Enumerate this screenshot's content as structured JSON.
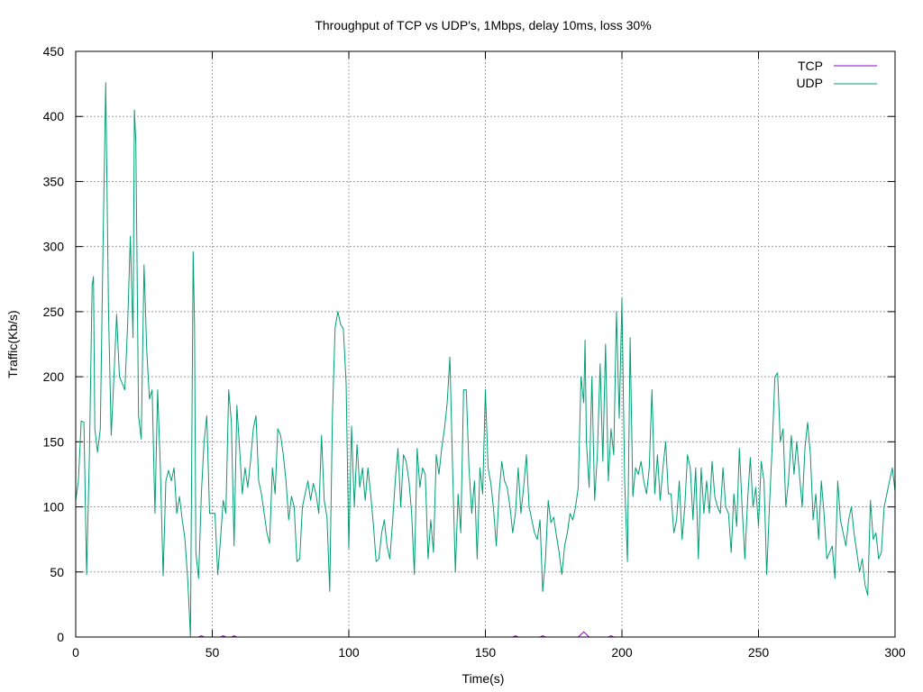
{
  "chart_data": {
    "type": "line",
    "title": "Throughput of TCP vs UDP's, 1Mbps, delay 10ms, loss 30%",
    "xlabel": "Time(s)",
    "ylabel": "Traffic(Kb/s)",
    "xlim": [
      0,
      300
    ],
    "ylim": [
      0,
      450
    ],
    "xticks": [
      0,
      50,
      100,
      150,
      200,
      250,
      300
    ],
    "yticks": [
      0,
      50,
      100,
      150,
      200,
      250,
      300,
      350,
      400,
      450
    ],
    "grid": true,
    "legend_position": "top-right",
    "series": [
      {
        "name": "TCP",
        "color": "#9400d3",
        "points": [
          [
            0,
            0
          ],
          [
            45,
            0
          ],
          [
            46,
            1
          ],
          [
            47,
            0
          ],
          [
            53,
            0
          ],
          [
            54,
            1
          ],
          [
            55,
            0
          ],
          [
            57,
            0
          ],
          [
            58,
            1
          ],
          [
            59,
            0
          ],
          [
            160,
            0
          ],
          [
            161,
            1
          ],
          [
            162,
            0
          ],
          [
            170,
            0
          ],
          [
            171,
            1
          ],
          [
            172,
            0
          ],
          [
            184,
            0
          ],
          [
            185,
            2
          ],
          [
            186,
            4
          ],
          [
            187,
            2
          ],
          [
            188,
            0
          ],
          [
            195,
            0
          ],
          [
            196,
            1
          ],
          [
            197,
            0
          ],
          [
            300,
            0
          ]
        ]
      },
      {
        "name": "UDP",
        "color": "#009e73",
        "points": [
          [
            0,
            105
          ],
          [
            1,
            120
          ],
          [
            2,
            166
          ],
          [
            3,
            165
          ],
          [
            4,
            48
          ],
          [
            5,
            140
          ],
          [
            6,
            270
          ],
          [
            6.5,
            277
          ],
          [
            7,
            160
          ],
          [
            8,
            142
          ],
          [
            9,
            160
          ],
          [
            10,
            300
          ],
          [
            11,
            426
          ],
          [
            12,
            250
          ],
          [
            13,
            155
          ],
          [
            14,
            200
          ],
          [
            15,
            248
          ],
          [
            16,
            200
          ],
          [
            17,
            195
          ],
          [
            18,
            190
          ],
          [
            19,
            240
          ],
          [
            20,
            308
          ],
          [
            21,
            230
          ],
          [
            21.5,
            405
          ],
          [
            22,
            380
          ],
          [
            23,
            170
          ],
          [
            24,
            152
          ],
          [
            25,
            286
          ],
          [
            26,
            220
          ],
          [
            27,
            183
          ],
          [
            28,
            190
          ],
          [
            29,
            95
          ],
          [
            30,
            190
          ],
          [
            31,
            130
          ],
          [
            32,
            47
          ],
          [
            33,
            120
          ],
          [
            34,
            128
          ],
          [
            35,
            120
          ],
          [
            36,
            130
          ],
          [
            37,
            95
          ],
          [
            38,
            108
          ],
          [
            39,
            90
          ],
          [
            40,
            75
          ],
          [
            41,
            45
          ],
          [
            42,
            0
          ],
          [
            43,
            296
          ],
          [
            43.5,
            240
          ],
          [
            44,
            65
          ],
          [
            45,
            45
          ],
          [
            46,
            110
          ],
          [
            47,
            150
          ],
          [
            48,
            170
          ],
          [
            49,
            95
          ],
          [
            50,
            95
          ],
          [
            51,
            95
          ],
          [
            52,
            48
          ],
          [
            53,
            75
          ],
          [
            54,
            105
          ],
          [
            55,
            95
          ],
          [
            56,
            190
          ],
          [
            57,
            165
          ],
          [
            58,
            70
          ],
          [
            59,
            178
          ],
          [
            60,
            145
          ],
          [
            61,
            110
          ],
          [
            62,
            130
          ],
          [
            63,
            115
          ],
          [
            64,
            135
          ],
          [
            65,
            160
          ],
          [
            66,
            170
          ],
          [
            67,
            120
          ],
          [
            68,
            110
          ],
          [
            69,
            95
          ],
          [
            70,
            80
          ],
          [
            71,
            72
          ],
          [
            72,
            130
          ],
          [
            73,
            110
          ],
          [
            74,
            160
          ],
          [
            75,
            155
          ],
          [
            76,
            140
          ],
          [
            77,
            120
          ],
          [
            78,
            90
          ],
          [
            79,
            108
          ],
          [
            80,
            100
          ],
          [
            81,
            58
          ],
          [
            82,
            60
          ],
          [
            83,
            100
          ],
          [
            84,
            110
          ],
          [
            85,
            120
          ],
          [
            86,
            105
          ],
          [
            87,
            118
          ],
          [
            88,
            110
          ],
          [
            89,
            95
          ],
          [
            90,
            155
          ],
          [
            91,
            105
          ],
          [
            92,
            92
          ],
          [
            93,
            35
          ],
          [
            94,
            170
          ],
          [
            95,
            238
          ],
          [
            96,
            250
          ],
          [
            97,
            240
          ],
          [
            98,
            237
          ],
          [
            99,
            195
          ],
          [
            100,
            68
          ],
          [
            101,
            162
          ],
          [
            102,
            100
          ],
          [
            103,
            148
          ],
          [
            104,
            115
          ],
          [
            105,
            130
          ],
          [
            106,
            105
          ],
          [
            107,
            130
          ],
          [
            108,
            110
          ],
          [
            109,
            86
          ],
          [
            110,
            58
          ],
          [
            111,
            60
          ],
          [
            112,
            80
          ],
          [
            113,
            90
          ],
          [
            114,
            70
          ],
          [
            115,
            60
          ],
          [
            116,
            88
          ],
          [
            117,
            120
          ],
          [
            118,
            145
          ],
          [
            119,
            100
          ],
          [
            120,
            140
          ],
          [
            121,
            135
          ],
          [
            122,
            120
          ],
          [
            123,
            95
          ],
          [
            124,
            48
          ],
          [
            125,
            145
          ],
          [
            126,
            115
          ],
          [
            127,
            130
          ],
          [
            128,
            125
          ],
          [
            129,
            60
          ],
          [
            130,
            90
          ],
          [
            131,
            65
          ],
          [
            132,
            140
          ],
          [
            133,
            125
          ],
          [
            134,
            145
          ],
          [
            135,
            160
          ],
          [
            136,
            180
          ],
          [
            137,
            215
          ],
          [
            138,
            130
          ],
          [
            139,
            50
          ],
          [
            140,
            110
          ],
          [
            141,
            80
          ],
          [
            142,
            190
          ],
          [
            143,
            190
          ],
          [
            144,
            130
          ],
          [
            145,
            95
          ],
          [
            146,
            120
          ],
          [
            147,
            60
          ],
          [
            148,
            130
          ],
          [
            149,
            110
          ],
          [
            150,
            190
          ],
          [
            151,
            130
          ],
          [
            152,
            118
          ],
          [
            153,
            98
          ],
          [
            154,
            70
          ],
          [
            155,
            110
          ],
          [
            156,
            135
          ],
          [
            157,
            120
          ],
          [
            158,
            115
          ],
          [
            159,
            100
          ],
          [
            160,
            80
          ],
          [
            161,
            95
          ],
          [
            162,
            130
          ],
          [
            163,
            95
          ],
          [
            164,
            115
          ],
          [
            165,
            140
          ],
          [
            166,
            100
          ],
          [
            167,
            90
          ],
          [
            168,
            80
          ],
          [
            169,
            75
          ],
          [
            170,
            90
          ],
          [
            171,
            35
          ],
          [
            172,
            60
          ],
          [
            173,
            105
          ],
          [
            174,
            88
          ],
          [
            175,
            92
          ],
          [
            176,
            78
          ],
          [
            177,
            65
          ],
          [
            178,
            48
          ],
          [
            179,
            70
          ],
          [
            180,
            80
          ],
          [
            181,
            95
          ],
          [
            182,
            90
          ],
          [
            183,
            100
          ],
          [
            184,
            115
          ],
          [
            185,
            200
          ],
          [
            186,
            180
          ],
          [
            186.5,
            228
          ],
          [
            187,
            150
          ],
          [
            188,
            115
          ],
          [
            189,
            200
          ],
          [
            190,
            105
          ],
          [
            191,
            140
          ],
          [
            192,
            210
          ],
          [
            193,
            135
          ],
          [
            194,
            225
          ],
          [
            195,
            120
          ],
          [
            196,
            160
          ],
          [
            197,
            140
          ],
          [
            198,
            250
          ],
          [
            199,
            168
          ],
          [
            200,
            260
          ],
          [
            201,
            120
          ],
          [
            202,
            58
          ],
          [
            203,
            230
          ],
          [
            204,
            108
          ],
          [
            205,
            130
          ],
          [
            206,
            125
          ],
          [
            207,
            135
          ],
          [
            208,
            120
          ],
          [
            209,
            110
          ],
          [
            210,
            130
          ],
          [
            211,
            190
          ],
          [
            212,
            110
          ],
          [
            213,
            140
          ],
          [
            214,
            105
          ],
          [
            215,
            130
          ],
          [
            216,
            150
          ],
          [
            217,
            110
          ],
          [
            218,
            110
          ],
          [
            219,
            80
          ],
          [
            220,
            90
          ],
          [
            221,
            120
          ],
          [
            222,
            75
          ],
          [
            223,
            100
          ],
          [
            224,
            140
          ],
          [
            225,
            130
          ],
          [
            226,
            90
          ],
          [
            227,
            130
          ],
          [
            228,
            60
          ],
          [
            229,
            130
          ],
          [
            230,
            95
          ],
          [
            231,
            120
          ],
          [
            232,
            95
          ],
          [
            233,
            135
          ],
          [
            234,
            108
          ],
          [
            235,
            100
          ],
          [
            236,
            95
          ],
          [
            237,
            130
          ],
          [
            238,
            100
          ],
          [
            239,
            95
          ],
          [
            240,
            65
          ],
          [
            241,
            110
          ],
          [
            242,
            85
          ],
          [
            243,
            145
          ],
          [
            244,
            100
          ],
          [
            245,
            60
          ],
          [
            246,
            105
          ],
          [
            247,
            138
          ],
          [
            248,
            100
          ],
          [
            249,
            115
          ],
          [
            250,
            85
          ],
          [
            251,
            135
          ],
          [
            252,
            120
          ],
          [
            253,
            48
          ],
          [
            254,
            100
          ],
          [
            255,
            145
          ],
          [
            256,
            200
          ],
          [
            257,
            203
          ],
          [
            258,
            150
          ],
          [
            259,
            160
          ],
          [
            260,
            100
          ],
          [
            261,
            120
          ],
          [
            262,
            155
          ],
          [
            263,
            125
          ],
          [
            264,
            150
          ],
          [
            265,
            125
          ],
          [
            266,
            100
          ],
          [
            267,
            145
          ],
          [
            268,
            165
          ],
          [
            269,
            140
          ],
          [
            270,
            90
          ],
          [
            271,
            110
          ],
          [
            272,
            75
          ],
          [
            273,
            120
          ],
          [
            274,
            95
          ],
          [
            275,
            60
          ],
          [
            276,
            65
          ],
          [
            277,
            70
          ],
          [
            278,
            45
          ],
          [
            279,
            120
          ],
          [
            280,
            90
          ],
          [
            281,
            80
          ],
          [
            282,
            70
          ],
          [
            283,
            90
          ],
          [
            284,
            100
          ],
          [
            285,
            80
          ],
          [
            286,
            65
          ],
          [
            287,
            50
          ],
          [
            288,
            60
          ],
          [
            289,
            40
          ],
          [
            290,
            32
          ],
          [
            291,
            105
          ],
          [
            292,
            75
          ],
          [
            293,
            80
          ],
          [
            294,
            60
          ],
          [
            295,
            65
          ],
          [
            296,
            100
          ],
          [
            297,
            110
          ],
          [
            298,
            120
          ],
          [
            299,
            130
          ],
          [
            300,
            112
          ]
        ]
      }
    ]
  }
}
